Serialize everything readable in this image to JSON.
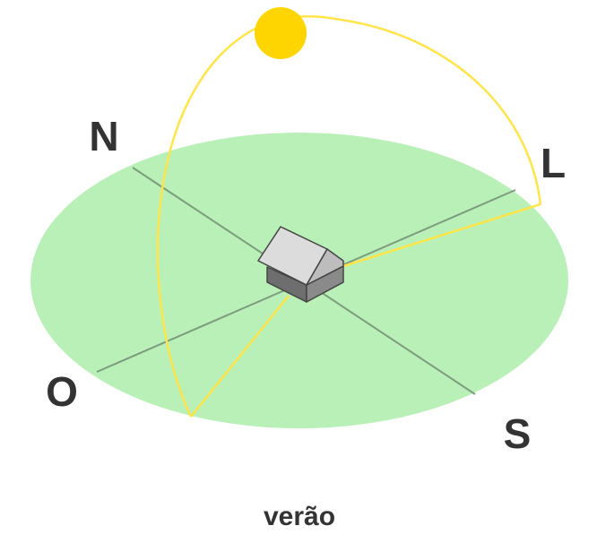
{
  "labels": {
    "north": "N",
    "east": "L",
    "west": "O",
    "south": "S"
  },
  "caption": "verão"
}
